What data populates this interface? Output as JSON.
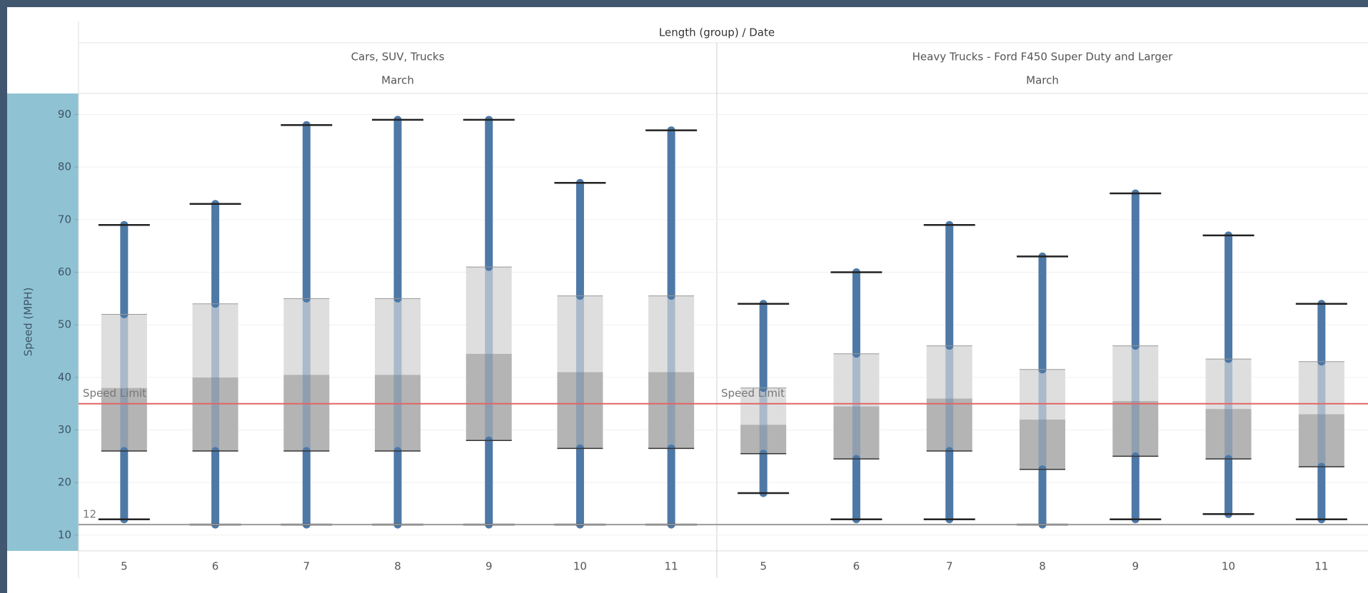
{
  "chart_data": {
    "type": "box",
    "title": "Length (group) / Date",
    "y_label": "Speed (MPH)",
    "ylim": [
      7,
      94
    ],
    "yticks": [
      10,
      20,
      30,
      40,
      50,
      60,
      70,
      80,
      90
    ],
    "grid": true,
    "box_colors": {
      "lower": "#b4b4b4",
      "upper": "#dedede",
      "points": "#4e79a7",
      "whisker": "#222222"
    },
    "reference_lines": [
      {
        "label": "Speed Limit",
        "value": 35,
        "color": "#e06666"
      },
      {
        "value": 12,
        "color": "#9a9a9a"
      }
    ],
    "panels": [
      {
        "name": "Cars, SUV, Trucks",
        "subname": "March",
        "categories": [
          "5",
          "6",
          "7",
          "8",
          "9",
          "10",
          "11"
        ],
        "min": [
          13,
          12,
          12,
          12,
          12,
          12,
          12
        ],
        "q1": [
          26,
          26,
          26,
          26,
          28,
          26.5,
          26.5
        ],
        "median": [
          38,
          40,
          40.5,
          40.5,
          44.5,
          41,
          41
        ],
        "q3": [
          52,
          54,
          55,
          55,
          61,
          55.5,
          55.5
        ],
        "max": [
          69,
          73,
          88,
          89,
          89,
          77,
          87
        ]
      },
      {
        "name": "Heavy Trucks - Ford F450 Super Duty and Larger",
        "subname": "March",
        "categories": [
          "5",
          "6",
          "7",
          "8",
          "9",
          "10",
          "11"
        ],
        "min": [
          18,
          13,
          13,
          12,
          13,
          14,
          13
        ],
        "q1": [
          25.5,
          24.5,
          26,
          22.5,
          25,
          24.5,
          23
        ],
        "median": [
          31,
          34.5,
          36,
          32,
          35.5,
          34,
          33
        ],
        "q3": [
          38,
          44.5,
          46,
          41.5,
          46,
          43.5,
          43
        ],
        "max": [
          54,
          60,
          69,
          63,
          75,
          67,
          54
        ]
      }
    ]
  }
}
